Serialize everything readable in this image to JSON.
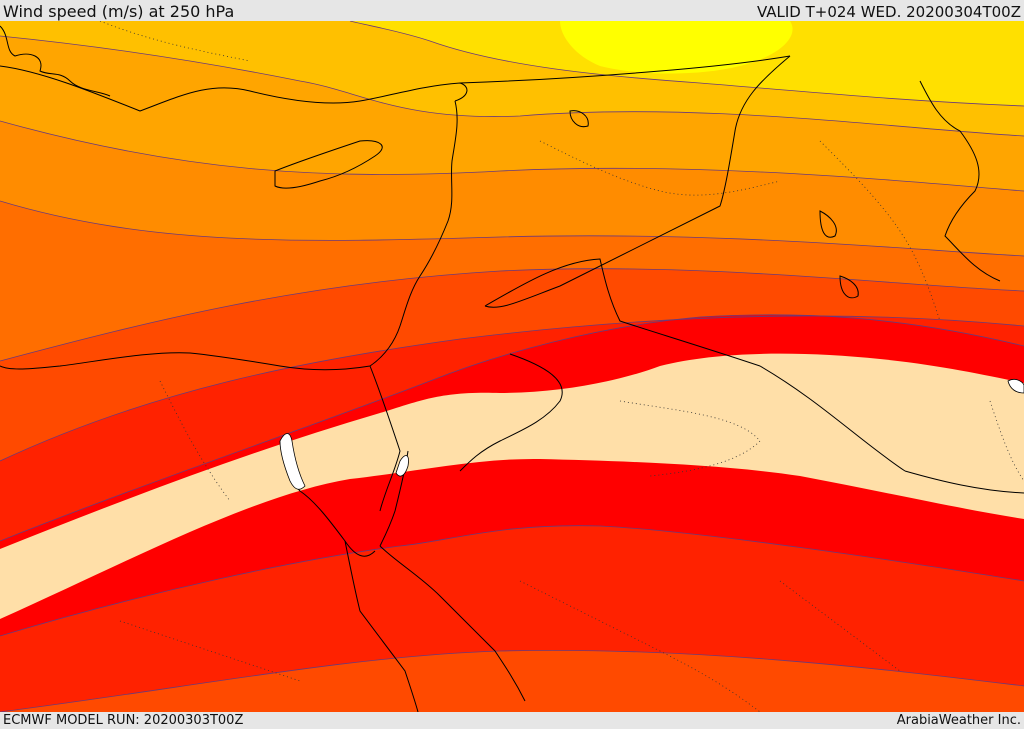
{
  "header": {
    "title": "Wind speed (m/s) at 250 hPa",
    "valid": "VALID T+024 WED. 20200304T00Z"
  },
  "footer": {
    "model_run": "ECMWF MODEL RUN: 20200303T00Z",
    "credit": "ArabiaWeather Inc."
  },
  "map": {
    "field": "wind-speed-250hPa",
    "colors": {
      "yellow": "#ffff00",
      "light_yellow": "#ffe000",
      "amber": "#ffc000",
      "light_orange": "#ffa500",
      "orange": "#ff8c00",
      "dark_orange": "#ff6e00",
      "red_orange": "#ff4a00",
      "scarlet": "#ff2200",
      "red": "#ff0000",
      "jet_core": "#ffdfa8",
      "land_border": "#000000",
      "contour": "#6a3a7a"
    }
  }
}
